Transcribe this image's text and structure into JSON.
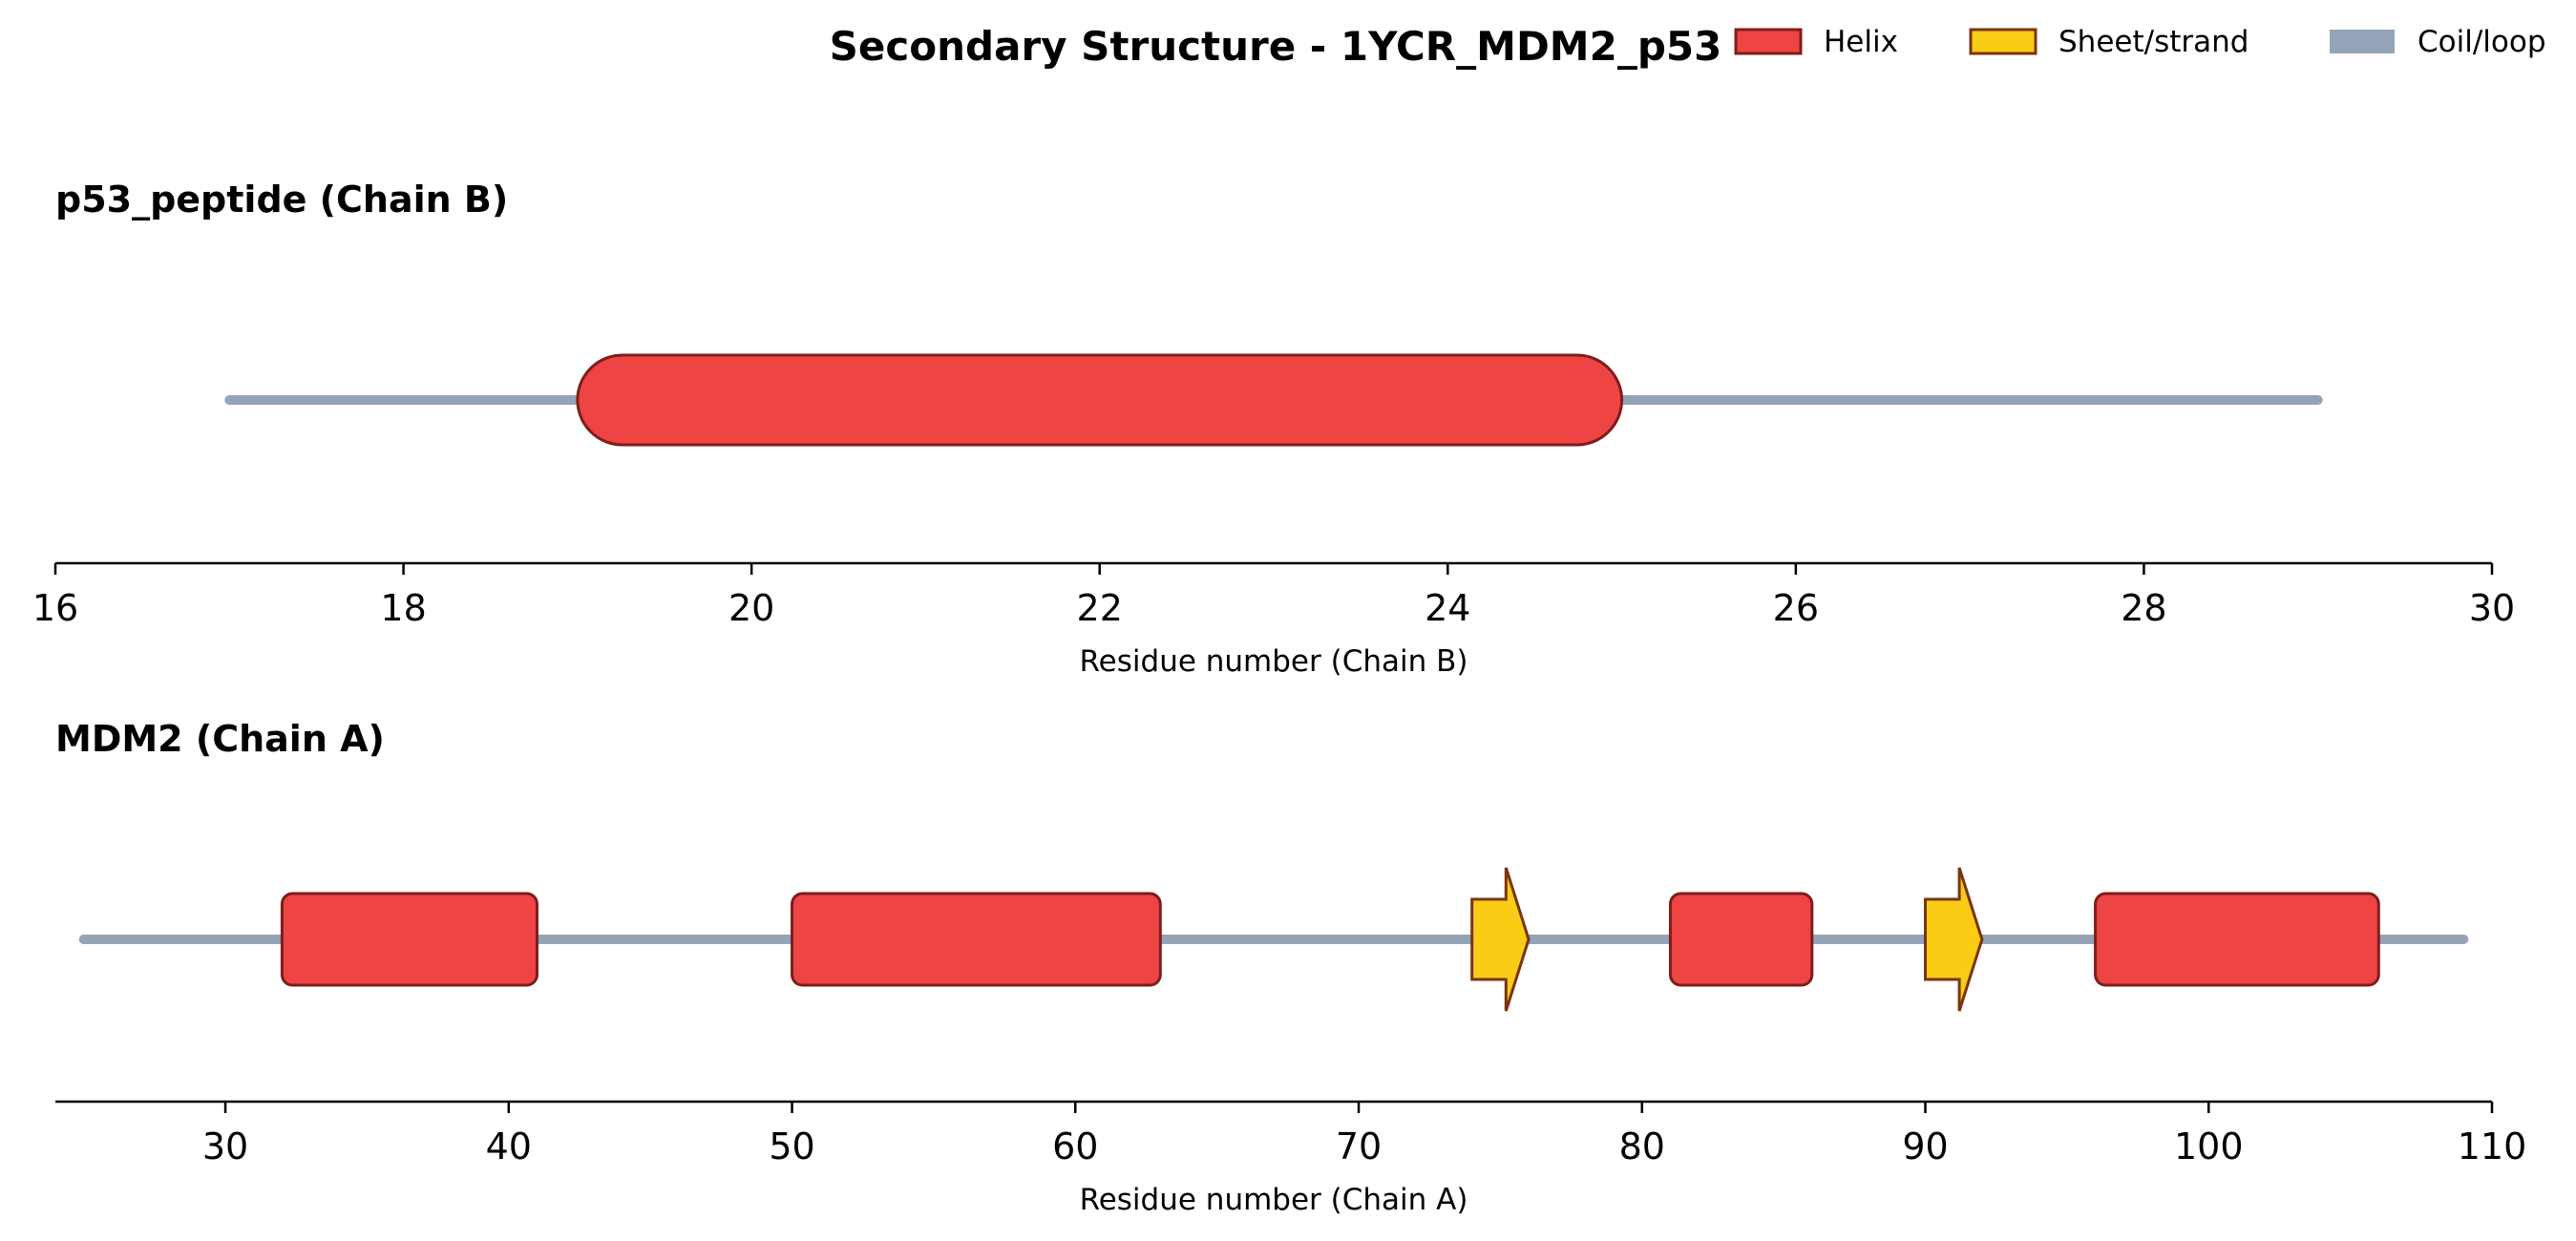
{
  "colors": {
    "helix_fill": "#ef4444",
    "helix_edge": "#7f1d1d",
    "strand_fill": "#facc15",
    "strand_edge": "#78350f",
    "coil": "#94a3b8"
  },
  "chart_data": {
    "type": "secondary-structure",
    "title": "Secondary Structure - 1YCR_MDM2_p53",
    "legend": {
      "placement": "top-right",
      "entries": [
        {
          "label": "Helix",
          "kind": "helix"
        },
        {
          "label": "Sheet/strand",
          "kind": "strand"
        },
        {
          "label": "Coil/loop",
          "kind": "coil"
        }
      ]
    },
    "panels": [
      {
        "name": "p53_peptide (Chain B)",
        "xlabel": "Residue number (Chain B)",
        "xlim": [
          16,
          30
        ],
        "ticks": [
          16,
          18,
          20,
          22,
          24,
          26,
          28,
          30
        ],
        "coil": [
          17,
          29
        ],
        "elements": [
          {
            "type": "helix",
            "start": 19,
            "end": 25
          }
        ]
      },
      {
        "name": "MDM2 (Chain A)",
        "xlabel": "Residue number (Chain A)",
        "xlim": [
          24,
          110
        ],
        "ticks": [
          30,
          40,
          50,
          60,
          70,
          80,
          90,
          100,
          110
        ],
        "coil": [
          25,
          109
        ],
        "elements": [
          {
            "type": "helix",
            "start": 32,
            "end": 41
          },
          {
            "type": "helix",
            "start": 50,
            "end": 63
          },
          {
            "type": "strand",
            "start": 74,
            "end": 76
          },
          {
            "type": "helix",
            "start": 81,
            "end": 86
          },
          {
            "type": "strand",
            "start": 90,
            "end": 92
          },
          {
            "type": "helix",
            "start": 96,
            "end": 106
          }
        ]
      }
    ]
  }
}
